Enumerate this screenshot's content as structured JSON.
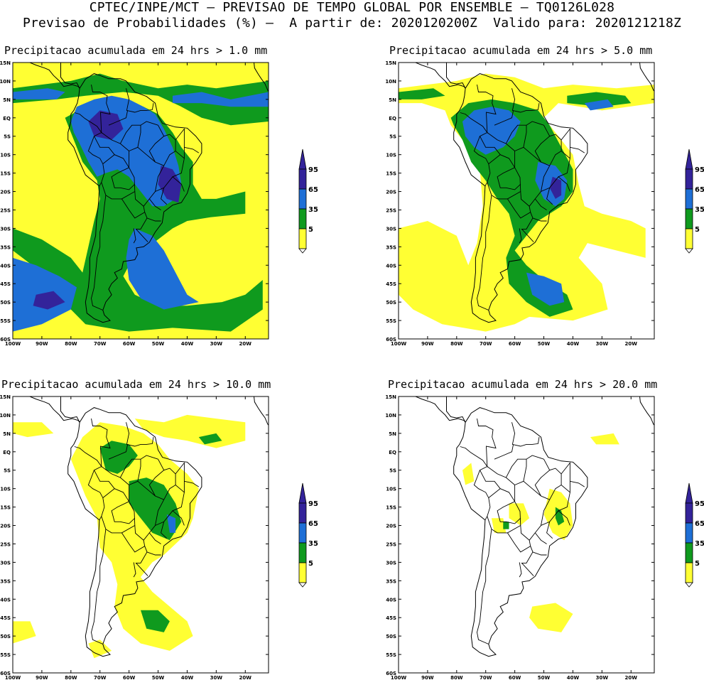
{
  "header": {
    "line1": "CPTEC/INPE/MCT – PREVISAO DE TEMPO GLOBAL POR ENSEMBLE – TQ0126L028",
    "line2": "Previsao de Probabilidades (%) –  A partir de: 2020120200Z  Valido para: 2020121218Z"
  },
  "colors": {
    "lvl5": "#ffff33",
    "lvl35": "#0f9a1e",
    "lvl65": "#1e6fd6",
    "lvl95": "#33239a",
    "coast": "#000000"
  },
  "map_axes": {
    "lat_labels": [
      "15N",
      "10N",
      "5N",
      "EQ",
      "5S",
      "10S",
      "15S",
      "20S",
      "25S",
      "30S",
      "35S",
      "40S",
      "45S",
      "50S",
      "55S",
      "60S"
    ],
    "lon_labels": [
      "100W",
      "90W",
      "80W",
      "70W",
      "60W",
      "50W",
      "40W",
      "30W",
      "20W"
    ]
  },
  "legend": {
    "labels": [
      "95",
      "65",
      "35",
      "5"
    ]
  },
  "panels": [
    {
      "id": "p1",
      "title": "Precipitacao acumulada em 24 hrs > 1.0 mm",
      "intensity": 4
    },
    {
      "id": "p2",
      "title": "Precipitacao acumulada em 24 hrs > 5.0 mm",
      "intensity": 3
    },
    {
      "id": "p3",
      "title": "Precipitacao acumulada em 24 hrs > 10.0 mm",
      "intensity": 2
    },
    {
      "id": "p4",
      "title": "Precipitacao acumulada em 24 hrs > 20.0 mm",
      "intensity": 1
    }
  ]
}
